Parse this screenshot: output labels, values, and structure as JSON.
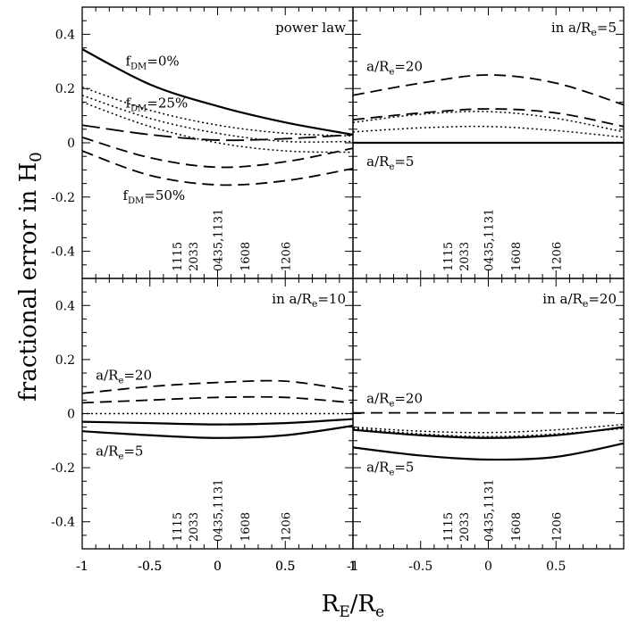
{
  "figure": {
    "ylabel": "fractional error in H",
    "ylabel_sub": "0",
    "xlabel": "R",
    "xlabel_sub1": "E",
    "xlabel_mid": "/R",
    "xlabel_sub2": "e"
  },
  "chart_data": [
    {
      "type": "line",
      "panel": "top-left",
      "title": "power law",
      "xlim": [
        -1,
        1
      ],
      "ylim": [
        -0.5,
        0.5
      ],
      "xticks": [
        "-1",
        "-0.5",
        "0",
        "0.5",
        "1"
      ],
      "yticks": [
        "0.4",
        "0.2",
        "0",
        "-0.2",
        "-0.4"
      ],
      "galaxy_labels": [
        "1115",
        "2033",
        "0435,1131",
        "1608",
        "1206"
      ],
      "galaxy_positions": [
        -0.3,
        -0.18,
        0,
        0.2,
        0.5
      ],
      "annotations": [
        {
          "text": "f",
          "sub": "DM",
          "rest": "=0%",
          "x": -0.68,
          "y": 0.285
        },
        {
          "text": "f",
          "sub": "DM",
          "rest": "=25%",
          "x": -0.68,
          "y": 0.13
        },
        {
          "text": "f",
          "sub": "DM",
          "rest": "=50%",
          "x": -0.7,
          "y": -0.21
        }
      ],
      "series": [
        {
          "style": "solid",
          "x": [
            -1,
            -0.5,
            0,
            0.5,
            1
          ],
          "y": [
            0.345,
            0.215,
            0.135,
            0.075,
            0.03
          ]
        },
        {
          "style": "dotted",
          "x": [
            -1,
            -0.5,
            0,
            0.5,
            1
          ],
          "y": [
            0.205,
            0.12,
            0.065,
            0.035,
            0.025
          ]
        },
        {
          "style": "dotted",
          "x": [
            -1,
            -0.5,
            0,
            0.5,
            1
          ],
          "y": [
            0.175,
            0.09,
            0.035,
            0.005,
            0.005
          ]
        },
        {
          "style": "dotted",
          "x": [
            -1,
            -0.5,
            0,
            0.5,
            1
          ],
          "y": [
            0.15,
            0.06,
            0.0,
            -0.03,
            -0.035
          ]
        },
        {
          "style": "longdash",
          "x": [
            -1,
            -0.5,
            0,
            0.5,
            1
          ],
          "y": [
            0.065,
            0.03,
            0.01,
            0.015,
            0.03
          ]
        },
        {
          "style": "dashed",
          "x": [
            -1,
            -0.5,
            0,
            0.5,
            1
          ],
          "y": [
            0.02,
            -0.055,
            -0.09,
            -0.07,
            -0.02
          ]
        },
        {
          "style": "dashed",
          "x": [
            -1,
            -0.5,
            0,
            0.5,
            1
          ],
          "y": [
            -0.03,
            -0.12,
            -0.155,
            -0.14,
            -0.095
          ]
        }
      ]
    },
    {
      "type": "line",
      "panel": "top-right",
      "title": "in a/R",
      "title_sub": "e",
      "title_rest": "=5",
      "xlim": [
        -1,
        1
      ],
      "ylim": [
        -0.5,
        0.5
      ],
      "galaxy_labels": [
        "1115",
        "2033",
        "0435,1131",
        "1608",
        "1206"
      ],
      "galaxy_positions": [
        -0.3,
        -0.18,
        0,
        0.2,
        0.5
      ],
      "annotations": [
        {
          "text": "a/R",
          "sub": "e",
          "rest": "=20",
          "x": -0.9,
          "y": 0.265
        },
        {
          "text": "a/R",
          "sub": "e",
          "rest": "=5",
          "x": -0.9,
          "y": -0.085
        }
      ],
      "series": [
        {
          "style": "dashed",
          "x": [
            -1,
            -0.5,
            0,
            0.5,
            1
          ],
          "y": [
            0.175,
            0.22,
            0.25,
            0.22,
            0.14
          ]
        },
        {
          "style": "dashed",
          "x": [
            -1,
            -0.5,
            0,
            0.5,
            1
          ],
          "y": [
            0.085,
            0.11,
            0.125,
            0.11,
            0.06
          ]
        },
        {
          "style": "dotted",
          "x": [
            -1,
            -0.5,
            0,
            0.5,
            1
          ],
          "y": [
            0.075,
            0.105,
            0.115,
            0.09,
            0.04
          ]
        },
        {
          "style": "dotted",
          "x": [
            -1,
            -0.5,
            0,
            0.5,
            1
          ],
          "y": [
            0.04,
            0.055,
            0.06,
            0.045,
            0.02
          ]
        },
        {
          "style": "solid",
          "x": [
            -1,
            1
          ],
          "y": [
            0.0,
            0.0
          ]
        }
      ]
    },
    {
      "type": "line",
      "panel": "bottom-left",
      "title": "in a/R",
      "title_sub": "e",
      "title_rest": "=10",
      "xlim": [
        -1,
        1
      ],
      "ylim": [
        -0.5,
        0.5
      ],
      "xticks": [
        "-1",
        "-0.5",
        "0",
        "0.5",
        "1"
      ],
      "yticks": [
        "0.4",
        "0.2",
        "0",
        "-0.2",
        "-0.4"
      ],
      "galaxy_labels": [
        "1115",
        "2033",
        "0435,1131",
        "1608",
        "1206"
      ],
      "galaxy_positions": [
        -0.3,
        -0.18,
        0,
        0.2,
        0.5
      ],
      "annotations": [
        {
          "text": "a/R",
          "sub": "e",
          "rest": "=20",
          "x": -0.9,
          "y": 0.125
        },
        {
          "text": "a/R",
          "sub": "e",
          "rest": "=5",
          "x": -0.9,
          "y": -0.155
        }
      ],
      "series": [
        {
          "style": "dashed",
          "x": [
            -1,
            -0.5,
            0,
            0.5,
            1
          ],
          "y": [
            0.075,
            0.1,
            0.115,
            0.12,
            0.085
          ]
        },
        {
          "style": "dashed",
          "x": [
            -1,
            -0.5,
            0,
            0.5,
            1
          ],
          "y": [
            0.04,
            0.05,
            0.06,
            0.06,
            0.04
          ]
        },
        {
          "style": "dotted",
          "x": [
            -1,
            -0.5,
            0,
            0.5,
            1
          ],
          "y": [
            0.0,
            0.0,
            0.0,
            0.0,
            0.0
          ]
        },
        {
          "style": "solid",
          "x": [
            -1,
            -0.5,
            0,
            0.5,
            1
          ],
          "y": [
            -0.03,
            -0.035,
            -0.04,
            -0.035,
            -0.02
          ]
        },
        {
          "style": "solid",
          "x": [
            -1,
            -0.5,
            0,
            0.5,
            1
          ],
          "y": [
            -0.065,
            -0.08,
            -0.09,
            -0.08,
            -0.045
          ]
        }
      ]
    },
    {
      "type": "line",
      "panel": "bottom-right",
      "title": "in a/R",
      "title_sub": "e",
      "title_rest": "=20",
      "xlim": [
        -1,
        1
      ],
      "ylim": [
        -0.5,
        0.5
      ],
      "xticks": [
        "-1",
        "-0.5",
        "0",
        "0.5"
      ],
      "galaxy_labels": [
        "1115",
        "2033",
        "0435,1131",
        "1608",
        "1206"
      ],
      "galaxy_positions": [
        -0.3,
        -0.18,
        0,
        0.2,
        0.5
      ],
      "annotations": [
        {
          "text": "a/R",
          "sub": "e",
          "rest": "=20",
          "x": -0.9,
          "y": 0.04
        },
        {
          "text": "a/R",
          "sub": "e",
          "rest": "=5",
          "x": -0.9,
          "y": -0.215
        }
      ],
      "series": [
        {
          "style": "dashed",
          "x": [
            -1,
            1
          ],
          "y": [
            0.003,
            0.003
          ]
        },
        {
          "style": "dotted",
          "x": [
            -1,
            -0.5,
            0,
            0.5,
            1
          ],
          "y": [
            -0.05,
            -0.065,
            -0.07,
            -0.06,
            -0.04
          ]
        },
        {
          "style": "dotted",
          "x": [
            -1,
            -0.5,
            0,
            0.5,
            1
          ],
          "y": [
            -0.055,
            -0.075,
            -0.085,
            -0.075,
            -0.055
          ]
        },
        {
          "style": "solid",
          "x": [
            -1,
            -0.5,
            0,
            0.5,
            1
          ],
          "y": [
            -0.06,
            -0.08,
            -0.09,
            -0.08,
            -0.05
          ]
        },
        {
          "style": "solid",
          "x": [
            -1,
            -0.5,
            0,
            0.5,
            1
          ],
          "y": [
            -0.125,
            -0.155,
            -0.17,
            -0.16,
            -0.11
          ]
        }
      ]
    }
  ]
}
